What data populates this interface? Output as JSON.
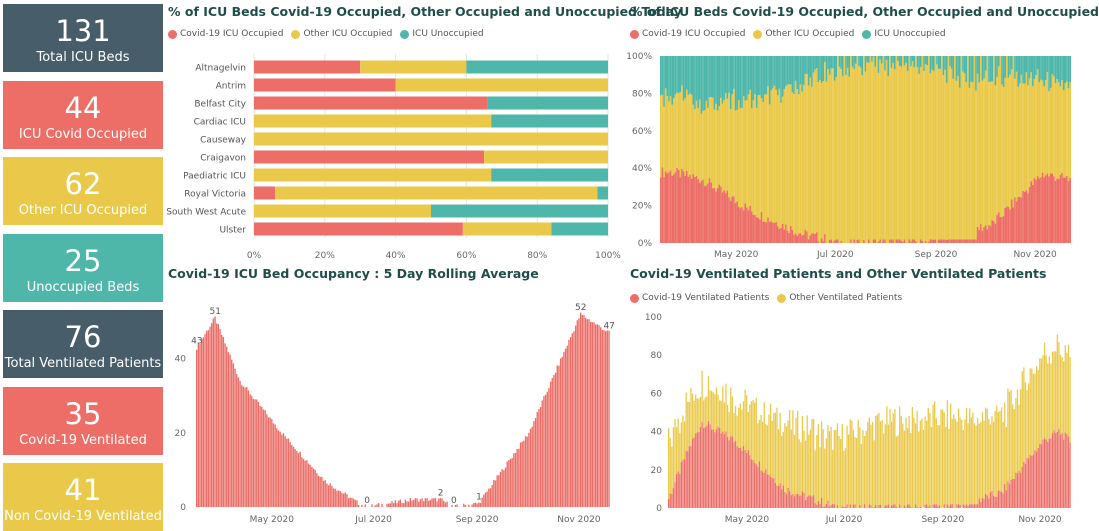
{
  "colors": {
    "covid": "#EC6E67",
    "other": "#EAC94A",
    "unocc": "#4FB7AA",
    "slate": "#475D6A"
  },
  "kpis": [
    {
      "value": "131",
      "label": "Total ICU Beds",
      "color": "#475D6A"
    },
    {
      "value": "44",
      "label": "ICU Covid Occupied",
      "color": "#EC6E67"
    },
    {
      "value": "62",
      "label": "Other ICU Occupied",
      "color": "#EAC94A"
    },
    {
      "value": "25",
      "label": "Unoccupied Beds",
      "color": "#4FB7AA"
    },
    {
      "value": "76",
      "label": "Total Ventilated Patients",
      "color": "#475D6A"
    },
    {
      "value": "35",
      "label": "Covid-19 Ventilated",
      "color": "#EC6E67"
    },
    {
      "value": "41",
      "label": "Non Covid-19 Ventilated",
      "color": "#EAC94A"
    }
  ],
  "panels": {
    "today": {
      "title": "% of ICU Beds Covid-19 Occupied, Other Occupied and Unoccupied Today",
      "legend": [
        "Covid-19 ICU Occupied",
        "Other ICU Occupied",
        "ICU Unoccupied"
      ]
    },
    "history": {
      "title": "% of ICU Beds Covid-19 Occupied, Other Occupied and Unoccupied",
      "legend": [
        "Covid-19 ICU Occupied",
        "Other ICU Occupied",
        "ICU Unoccupied"
      ]
    },
    "rolling": {
      "title": "Covid-19 ICU Bed Occupancy : 5 Day Rolling Average"
    },
    "ventilated": {
      "title": "Covid-19 Ventilated Patients and Other Ventilated Patients",
      "legend": [
        "Covid-19 Ventilated Patients",
        "Other Ventilated Patients"
      ]
    }
  },
  "chart_data": [
    {
      "type": "bar",
      "orientation": "horizontal",
      "stacked": "percent",
      "title": "% of ICU Beds Covid-19 Occupied, Other Occupied and Unoccupied Today",
      "categories": [
        "Altnagelvin",
        "Antrim",
        "Belfast City",
        "Cardiac ICU",
        "Causeway",
        "Craigavon",
        "Paediatric ICU",
        "Royal Victoria",
        "South West Acute",
        "Ulster"
      ],
      "series": [
        {
          "name": "Covid-19 ICU Occupied",
          "values": [
            30,
            40,
            66,
            0,
            0,
            65,
            0,
            6,
            0,
            59
          ]
        },
        {
          "name": "Other ICU Occupied",
          "values": [
            30,
            60,
            0,
            67,
            100,
            35,
            67,
            91,
            50,
            25
          ]
        },
        {
          "name": "ICU Unoccupied",
          "values": [
            40,
            0,
            34,
            33,
            0,
            0,
            33,
            3,
            50,
            16
          ]
        }
      ],
      "xlim": [
        0,
        100
      ],
      "xticks": [
        "0%",
        "20%",
        "40%",
        "60%",
        "80%",
        "100%"
      ],
      "legend_position": "top-left"
    },
    {
      "type": "bar",
      "stacked": "percent",
      "title": "% of ICU Beds Covid-19 Occupied, Other Occupied and Unoccupied",
      "x_range": [
        "2020-03-20",
        "2020-11-27"
      ],
      "key_points": [
        {
          "date": "2020-03-27",
          "covid": 38,
          "other": 42
        },
        {
          "date": "2020-04-15",
          "covid": 34,
          "other": 40
        },
        {
          "date": "2020-05-15",
          "covid": 17,
          "other": 60
        },
        {
          "date": "2020-06-15",
          "covid": 5,
          "other": 80
        },
        {
          "date": "2020-07-10",
          "covid": 0,
          "other": 93
        },
        {
          "date": "2020-09-01",
          "covid": 1,
          "other": 93
        },
        {
          "date": "2020-10-10",
          "covid": 10,
          "other": 78
        },
        {
          "date": "2020-11-10",
          "covid": 37,
          "other": 50
        },
        {
          "date": "2020-11-27",
          "covid": 34,
          "other": 48
        }
      ],
      "series_names": [
        "Covid-19 ICU Occupied",
        "Other ICU Occupied",
        "ICU Unoccupied"
      ],
      "ylim": [
        0,
        100
      ],
      "yticks": [
        "0%",
        "20%",
        "40%",
        "60%",
        "80%",
        "100%"
      ],
      "xticks": [
        "May 2020",
        "Jul 2020",
        "Sep 2020",
        "Nov 2020"
      ],
      "legend_position": "top-left"
    },
    {
      "type": "bar",
      "title": "Covid-19 ICU Bed Occupancy : 5 Day Rolling Average",
      "x_range": [
        "2020-03-25",
        "2020-11-27"
      ],
      "key_points": [
        {
          "date": "2020-03-25",
          "value": 43
        },
        {
          "date": "2020-04-05",
          "value": 51
        },
        {
          "date": "2020-04-20",
          "value": 34
        },
        {
          "date": "2020-05-15",
          "value": 20
        },
        {
          "date": "2020-06-10",
          "value": 7
        },
        {
          "date": "2020-06-30",
          "value": 1
        },
        {
          "date": "2020-07-05",
          "value": 0
        },
        {
          "date": "2020-08-01",
          "value": 2
        },
        {
          "date": "2020-08-18",
          "value": 2
        },
        {
          "date": "2020-08-26",
          "value": 0
        },
        {
          "date": "2020-09-10",
          "value": 1
        },
        {
          "date": "2020-10-10",
          "value": 20
        },
        {
          "date": "2020-11-10",
          "value": 52
        },
        {
          "date": "2020-11-27",
          "value": 47
        }
      ],
      "data_labels": [
        {
          "date": "2020-03-25",
          "text": "43"
        },
        {
          "date": "2020-04-05",
          "text": "51"
        },
        {
          "date": "2020-07-05",
          "text": "0"
        },
        {
          "date": "2020-08-18",
          "text": "2"
        },
        {
          "date": "2020-08-26",
          "text": "0"
        },
        {
          "date": "2020-09-10",
          "text": "1"
        },
        {
          "date": "2020-11-10",
          "text": "52"
        },
        {
          "date": "2020-11-27",
          "text": "47"
        }
      ],
      "ylim": [
        0,
        55
      ],
      "yticks": [
        "0",
        "20",
        "40"
      ],
      "xticks": [
        "May 2020",
        "Jul 2020",
        "Sep 2020",
        "Nov 2020"
      ]
    },
    {
      "type": "bar",
      "stacked": true,
      "title": "Covid-19 Ventilated Patients and Other Ventilated Patients",
      "x_range": [
        "2020-03-20",
        "2020-11-27"
      ],
      "key_points": [
        {
          "date": "2020-03-20",
          "covid": 5,
          "other": 30
        },
        {
          "date": "2020-04-01",
          "covid": 30,
          "other": 25
        },
        {
          "date": "2020-04-10",
          "covid": 45,
          "other": 22
        },
        {
          "date": "2020-05-01",
          "covid": 35,
          "other": 22
        },
        {
          "date": "2020-06-01",
          "covid": 10,
          "other": 36
        },
        {
          "date": "2020-07-01",
          "covid": 1,
          "other": 35
        },
        {
          "date": "2020-08-01",
          "covid": 0,
          "other": 44
        },
        {
          "date": "2020-09-15",
          "covid": 1,
          "other": 47
        },
        {
          "date": "2020-10-15",
          "covid": 8,
          "other": 40
        },
        {
          "date": "2020-11-10",
          "covid": 35,
          "other": 45
        },
        {
          "date": "2020-11-20",
          "covid": 40,
          "other": 45
        },
        {
          "date": "2020-11-27",
          "covid": 35,
          "other": 41
        }
      ],
      "series_names": [
        "Covid-19 Ventilated Patients",
        "Other Ventilated Patients"
      ],
      "ylim": [
        0,
        100
      ],
      "yticks": [
        "0",
        "20",
        "40",
        "60",
        "80",
        "100"
      ],
      "xticks": [
        "May 2020",
        "Jul 2020",
        "Sep 2020",
        "Nov 2020"
      ],
      "legend_position": "top-left"
    }
  ]
}
